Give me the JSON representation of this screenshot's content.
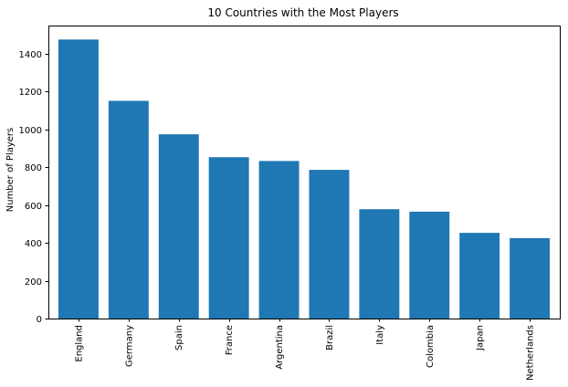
{
  "chart_data": {
    "type": "bar",
    "title": "10 Countries with the Most Players",
    "xlabel": "",
    "ylabel": "Number of Players",
    "categories": [
      "England",
      "Germany",
      "Spain",
      "France",
      "Argentina",
      "Brazil",
      "Italy",
      "Colombia",
      "Japan",
      "Netherlands"
    ],
    "values": [
      1475,
      1151,
      974,
      853,
      833,
      786,
      578,
      565,
      453,
      425
    ],
    "ylim": [
      0,
      1549
    ],
    "yticks": [
      0,
      200,
      400,
      600,
      800,
      1000,
      1200,
      1400
    ],
    "bar_color": "#1f77b4",
    "grid": false,
    "legend": "none"
  }
}
